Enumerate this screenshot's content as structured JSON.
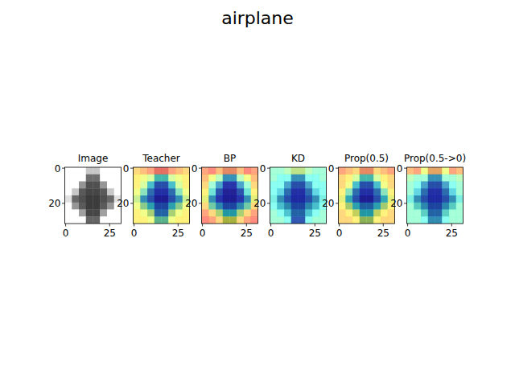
{
  "chart_data": {
    "type": "heatmap",
    "title": "airplane",
    "panels": [
      {
        "title": "Image",
        "type": "image",
        "clim": [
          0,
          255
        ],
        "xlim": [
          -0.5,
          31.5
        ],
        "ylim": [
          31.5,
          -0.5
        ],
        "xticks": [
          0,
          25
        ],
        "yticks": [
          0,
          20
        ],
        "values": [
          [
            255,
            255,
            255,
            200,
            200,
            255,
            255,
            255
          ],
          [
            255,
            255,
            255,
            110,
            110,
            255,
            255,
            255
          ],
          [
            255,
            255,
            150,
            80,
            80,
            150,
            255,
            255
          ],
          [
            255,
            200,
            90,
            70,
            70,
            90,
            200,
            255
          ],
          [
            225,
            105,
            80,
            60,
            60,
            80,
            105,
            225
          ],
          [
            255,
            150,
            90,
            60,
            60,
            90,
            150,
            255
          ],
          [
            255,
            255,
            160,
            70,
            70,
            160,
            255,
            255
          ],
          [
            255,
            255,
            255,
            100,
            100,
            255,
            255,
            255
          ]
        ]
      },
      {
        "title": "Teacher",
        "type": "heatmap",
        "clim": [
          0,
          1
        ],
        "xlim": [
          -0.5,
          31.5
        ],
        "ylim": [
          31.5,
          -0.5
        ],
        "xticks": [
          0,
          25
        ],
        "yticks": [
          0,
          20
        ],
        "values": [
          [
            0.7,
            0.75,
            0.8,
            0.85,
            0.85,
            0.8,
            0.75,
            0.7
          ],
          [
            0.65,
            0.6,
            0.55,
            0.4,
            0.4,
            0.55,
            0.6,
            0.65
          ],
          [
            0.65,
            0.55,
            0.35,
            0.2,
            0.2,
            0.35,
            0.55,
            0.65
          ],
          [
            0.6,
            0.45,
            0.25,
            0.15,
            0.15,
            0.25,
            0.45,
            0.6
          ],
          [
            0.55,
            0.3,
            0.2,
            0.1,
            0.1,
            0.2,
            0.3,
            0.55
          ],
          [
            0.6,
            0.5,
            0.35,
            0.2,
            0.2,
            0.35,
            0.5,
            0.6
          ],
          [
            0.65,
            0.6,
            0.55,
            0.25,
            0.25,
            0.55,
            0.6,
            0.65
          ],
          [
            0.65,
            0.65,
            0.6,
            0.45,
            0.45,
            0.6,
            0.65,
            0.65
          ]
        ]
      },
      {
        "title": "BP",
        "type": "heatmap",
        "clim": [
          0,
          1
        ],
        "xlim": [
          -0.5,
          31.5
        ],
        "ylim": [
          31.5,
          -0.5
        ],
        "xticks": [
          0,
          25
        ],
        "yticks": [
          0,
          20
        ],
        "values": [
          [
            0.8,
            0.85,
            0.75,
            0.8,
            0.8,
            0.75,
            0.85,
            0.8
          ],
          [
            0.75,
            0.6,
            0.5,
            0.3,
            0.3,
            0.5,
            0.6,
            0.75
          ],
          [
            0.7,
            0.45,
            0.3,
            0.15,
            0.15,
            0.3,
            0.45,
            0.7
          ],
          [
            0.65,
            0.4,
            0.2,
            0.1,
            0.1,
            0.2,
            0.4,
            0.65
          ],
          [
            0.6,
            0.3,
            0.15,
            0.1,
            0.1,
            0.15,
            0.3,
            0.6
          ],
          [
            0.7,
            0.45,
            0.3,
            0.2,
            0.2,
            0.3,
            0.45,
            0.7
          ],
          [
            0.8,
            0.7,
            0.55,
            0.35,
            0.35,
            0.55,
            0.7,
            0.8
          ],
          [
            0.85,
            0.8,
            0.7,
            0.6,
            0.6,
            0.7,
            0.8,
            0.85
          ]
        ]
      },
      {
        "title": "KD",
        "type": "heatmap",
        "clim": [
          0,
          1
        ],
        "xlim": [
          -0.5,
          31.5
        ],
        "ylim": [
          31.5,
          -0.5
        ],
        "xticks": [
          0,
          25
        ],
        "yticks": [
          0,
          20
        ],
        "values": [
          [
            0.45,
            0.45,
            0.5,
            0.55,
            0.55,
            0.5,
            0.45,
            0.45
          ],
          [
            0.45,
            0.4,
            0.4,
            0.3,
            0.3,
            0.4,
            0.4,
            0.45
          ],
          [
            0.4,
            0.4,
            0.3,
            0.2,
            0.2,
            0.3,
            0.4,
            0.4
          ],
          [
            0.4,
            0.35,
            0.25,
            0.15,
            0.15,
            0.25,
            0.35,
            0.4
          ],
          [
            0.4,
            0.3,
            0.2,
            0.15,
            0.15,
            0.2,
            0.3,
            0.4
          ],
          [
            0.4,
            0.35,
            0.3,
            0.2,
            0.2,
            0.3,
            0.35,
            0.4
          ],
          [
            0.45,
            0.4,
            0.35,
            0.25,
            0.25,
            0.35,
            0.4,
            0.45
          ],
          [
            0.45,
            0.45,
            0.4,
            0.2,
            0.2,
            0.4,
            0.45,
            0.45
          ]
        ]
      },
      {
        "title": "Prop(0.5)",
        "type": "heatmap",
        "clim": [
          0,
          1
        ],
        "xlim": [
          -0.5,
          31.5
        ],
        "ylim": [
          31.5,
          -0.5
        ],
        "xticks": [
          0,
          25
        ],
        "yticks": [
          0,
          20
        ],
        "values": [
          [
            0.8,
            0.75,
            0.7,
            0.8,
            0.8,
            0.7,
            0.75,
            0.8
          ],
          [
            0.7,
            0.65,
            0.55,
            0.4,
            0.4,
            0.55,
            0.65,
            0.7
          ],
          [
            0.7,
            0.6,
            0.35,
            0.2,
            0.2,
            0.35,
            0.6,
            0.7
          ],
          [
            0.65,
            0.45,
            0.25,
            0.15,
            0.15,
            0.25,
            0.45,
            0.65
          ],
          [
            0.6,
            0.35,
            0.2,
            0.1,
            0.1,
            0.2,
            0.35,
            0.6
          ],
          [
            0.65,
            0.55,
            0.35,
            0.25,
            0.25,
            0.35,
            0.55,
            0.65
          ],
          [
            0.7,
            0.65,
            0.6,
            0.35,
            0.35,
            0.6,
            0.65,
            0.7
          ],
          [
            0.7,
            0.7,
            0.65,
            0.55,
            0.55,
            0.65,
            0.7,
            0.7
          ]
        ]
      },
      {
        "title": "Prop(0.5->0)",
        "type": "heatmap",
        "clim": [
          0,
          1
        ],
        "xlim": [
          -0.5,
          31.5
        ],
        "ylim": [
          31.5,
          -0.5
        ],
        "xticks": [
          0,
          25
        ],
        "yticks": [
          0,
          20
        ],
        "values": [
          [
            0.75,
            0.8,
            0.6,
            0.75,
            0.75,
            0.6,
            0.8,
            0.75
          ],
          [
            0.5,
            0.45,
            0.45,
            0.3,
            0.3,
            0.45,
            0.45,
            0.5
          ],
          [
            0.45,
            0.4,
            0.3,
            0.2,
            0.2,
            0.3,
            0.4,
            0.45
          ],
          [
            0.45,
            0.35,
            0.25,
            0.15,
            0.15,
            0.25,
            0.35,
            0.45
          ],
          [
            0.4,
            0.3,
            0.2,
            0.15,
            0.15,
            0.2,
            0.3,
            0.4
          ],
          [
            0.45,
            0.4,
            0.3,
            0.2,
            0.2,
            0.3,
            0.4,
            0.45
          ],
          [
            0.45,
            0.45,
            0.4,
            0.25,
            0.25,
            0.4,
            0.45,
            0.45
          ],
          [
            0.45,
            0.45,
            0.4,
            0.3,
            0.3,
            0.4,
            0.45,
            0.45
          ]
        ]
      }
    ]
  }
}
